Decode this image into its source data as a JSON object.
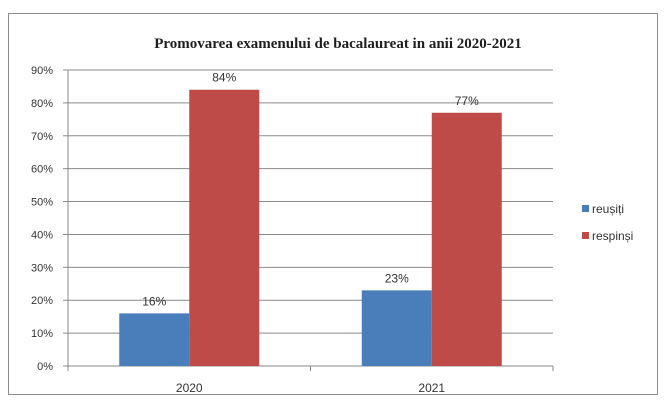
{
  "chart_data": {
    "type": "bar",
    "title": "Promovarea examenului de bacalaureat in anii 2020-2021",
    "categories": [
      "2020",
      "2021"
    ],
    "series": [
      {
        "name": "reușiți",
        "values": [
          16,
          23
        ],
        "labels": [
          "16%",
          "23%"
        ],
        "color": "#4a7ebb"
      },
      {
        "name": "respinși",
        "values": [
          84,
          77
        ],
        "labels": [
          "84%",
          "77%"
        ],
        "color": "#be4b48"
      }
    ],
    "xlabel": "",
    "ylabel": "",
    "ylim": [
      0,
      90
    ],
    "y_ticks": [
      "0%",
      "10%",
      "20%",
      "30%",
      "40%",
      "50%",
      "60%",
      "70%",
      "80%",
      "90%"
    ],
    "grid": true,
    "legend_position": "right"
  }
}
